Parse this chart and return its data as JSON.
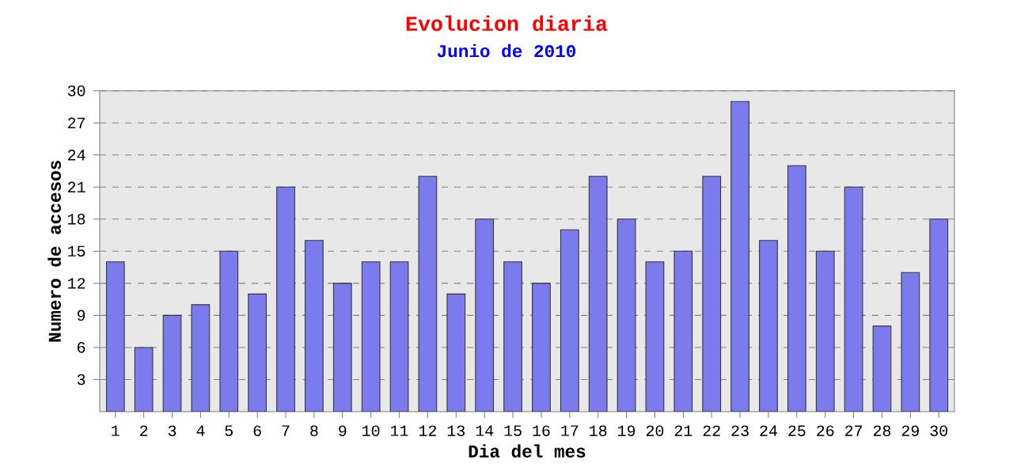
{
  "chart_data": {
    "type": "bar",
    "title": "Evolucion diaria",
    "subtitle": "Junio de 2010",
    "xlabel": "Dia del mes",
    "ylabel": "Numero de accesos",
    "categories": [
      "1",
      "2",
      "3",
      "4",
      "5",
      "6",
      "7",
      "8",
      "9",
      "10",
      "11",
      "12",
      "13",
      "14",
      "15",
      "16",
      "17",
      "18",
      "19",
      "20",
      "21",
      "22",
      "23",
      "24",
      "25",
      "26",
      "27",
      "28",
      "29",
      "30"
    ],
    "values": [
      14,
      6,
      9,
      10,
      15,
      11,
      21,
      16,
      12,
      14,
      14,
      22,
      11,
      18,
      14,
      12,
      17,
      22,
      18,
      14,
      15,
      22,
      29,
      16,
      23,
      15,
      21,
      8,
      13,
      18
    ],
    "color": "#7b7bee",
    "ylim": [
      0,
      30
    ],
    "yticks": [
      3,
      6,
      9,
      12,
      15,
      18,
      21,
      24,
      27,
      30
    ],
    "grid": "y"
  }
}
